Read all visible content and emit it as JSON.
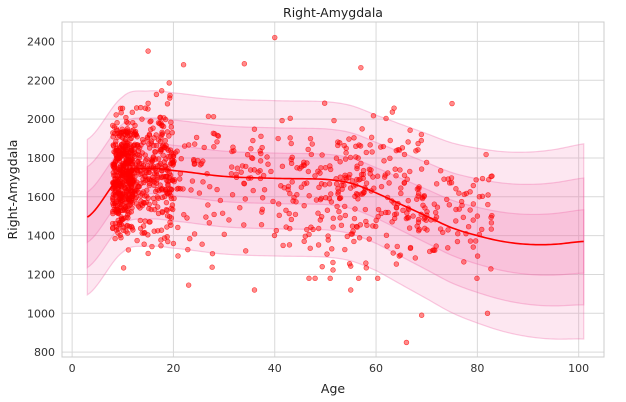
{
  "chart_data": {
    "type": "scatter",
    "title": "Right-Amygdala",
    "xlabel": "Age",
    "ylabel": "Right-Amygdala",
    "xlim": [
      -2,
      105
    ],
    "ylim": [
      775,
      2500
    ],
    "x_ticks": [
      0,
      20,
      40,
      60,
      80,
      100
    ],
    "y_ticks": [
      800,
      1000,
      1200,
      1400,
      1600,
      1800,
      2000,
      2200,
      2400
    ],
    "grid": true,
    "colors": {
      "points": "#ff0000",
      "fit_line": "#ff0000",
      "band": "#f06aa8",
      "grid": "#d9d9d9",
      "frame": "#cccccc"
    },
    "fit_line": {
      "x": [
        3,
        10,
        15,
        20,
        30,
        40,
        50,
        55,
        60,
        65,
        70,
        75,
        80,
        85,
        90,
        95,
        101
      ],
      "y": [
        1495,
        1715,
        1745,
        1735,
        1705,
        1695,
        1690,
        1670,
        1620,
        1560,
        1500,
        1440,
        1400,
        1370,
        1355,
        1355,
        1370
      ]
    },
    "band_offsets": [
      400,
      260,
      130
    ],
    "scatter_clusters": [
      {
        "x_min": 8,
        "x_max": 12,
        "y_mean": 1700,
        "y_sd": 190,
        "count": 420
      },
      {
        "x_min": 12,
        "x_max": 20,
        "y_mean": 1740,
        "y_sd": 210,
        "count": 300
      },
      {
        "x_min": 20,
        "x_max": 45,
        "y_mean": 1690,
        "y_sd": 220,
        "count": 140
      },
      {
        "x_min": 45,
        "x_max": 70,
        "y_mean": 1620,
        "y_sd": 230,
        "count": 260
      },
      {
        "x_min": 70,
        "x_max": 83,
        "y_mean": 1510,
        "y_sd": 190,
        "count": 70
      }
    ],
    "scatter_outliers": [
      {
        "x": 40,
        "y": 2420
      },
      {
        "x": 15,
        "y": 2350
      },
      {
        "x": 34,
        "y": 2285
      },
      {
        "x": 57,
        "y": 2265
      },
      {
        "x": 22,
        "y": 2280
      },
      {
        "x": 66,
        "y": 850
      },
      {
        "x": 69,
        "y": 990
      },
      {
        "x": 36,
        "y": 1120
      },
      {
        "x": 55,
        "y": 1120
      },
      {
        "x": 23,
        "y": 1145
      },
      {
        "x": 82,
        "y": 1000
      },
      {
        "x": 75,
        "y": 2080
      }
    ]
  }
}
